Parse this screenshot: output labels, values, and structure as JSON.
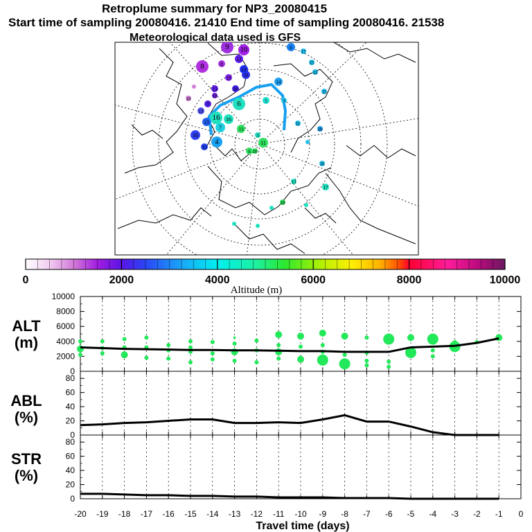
{
  "header": {
    "title": "Retroplume summary for NP3_20080415",
    "subtitle": "Start time of sampling 20080416. 21410     End time of sampling 20080416. 21538",
    "met": "Meteorological data used is GFS"
  },
  "colorbar": {
    "label": "Altitude (m)",
    "ticks": [
      "0",
      "2000",
      "4000",
      "6000",
      "8000",
      "10000"
    ],
    "min": 0,
    "max": 10000
  },
  "map": {
    "labels": [
      "9",
      "10",
      "8",
      "12",
      "8",
      "10",
      "19",
      "13",
      "16",
      "10",
      "7",
      "16",
      "13",
      "4",
      "7",
      "16",
      "16",
      "6",
      "13",
      "6",
      "11",
      "3",
      "5",
      "3",
      "6",
      "17",
      "15",
      "12",
      "15",
      "11",
      "20",
      "16",
      "16",
      "13",
      "17",
      "18",
      "14",
      "14",
      "10",
      "9",
      "10",
      "19",
      "20",
      "13",
      "13",
      "18",
      "14"
    ]
  },
  "panels": {
    "alt_label": "ALT",
    "alt_unit": "(m)",
    "abl_label": "ABL",
    "abl_unit": "(%)",
    "str_label": "STR",
    "str_unit": "(%)",
    "xlabel": "Travel time (days)"
  },
  "chart_data": [
    {
      "type": "scatter",
      "panel": "ALT",
      "ylabel": "ALT (m)",
      "xlabel": "Travel time (days)",
      "xlim": [
        -20,
        0
      ],
      "ylim": [
        0,
        10000
      ],
      "yticks": [
        "0",
        "2000",
        "4000",
        "6000",
        "8000",
        "10000"
      ],
      "xticks": [
        "-20",
        "-19",
        "-18",
        "-17",
        "-16",
        "-15",
        "-14",
        "-13",
        "-12",
        "-11",
        "-10",
        "-9",
        "-8",
        "-7",
        "-6",
        "-5",
        "-4",
        "-3",
        "-2",
        "-1",
        "0"
      ],
      "mean_line": {
        "x": [
          -20,
          -19,
          -18,
          -17,
          -16,
          -15,
          -14,
          -13,
          -12,
          -11,
          -10,
          -9,
          -8,
          -7,
          -6,
          -5,
          -4,
          -3,
          -2,
          -1
        ],
        "y": [
          3200,
          3100,
          3000,
          2950,
          2900,
          2850,
          2850,
          2800,
          2800,
          2750,
          2700,
          2700,
          2600,
          2600,
          2600,
          3200,
          3300,
          3400,
          3800,
          4400
        ]
      },
      "points": [
        {
          "x": -20,
          "y": 4000,
          "s": 1
        },
        {
          "x": -20,
          "y": 3000,
          "s": 2
        },
        {
          "x": -20,
          "y": 2200,
          "s": 1
        },
        {
          "x": -19,
          "y": 4000,
          "s": 1
        },
        {
          "x": -19,
          "y": 3100,
          "s": 1
        },
        {
          "x": -19,
          "y": 2400,
          "s": 1
        },
        {
          "x": -18,
          "y": 4300,
          "s": 1
        },
        {
          "x": -18,
          "y": 3200,
          "s": 1
        },
        {
          "x": -18,
          "y": 2200,
          "s": 2
        },
        {
          "x": -17,
          "y": 4500,
          "s": 1
        },
        {
          "x": -17,
          "y": 3200,
          "s": 1
        },
        {
          "x": -17,
          "y": 1800,
          "s": 1
        },
        {
          "x": -16,
          "y": 3500,
          "s": 1
        },
        {
          "x": -16,
          "y": 2800,
          "s": 1
        },
        {
          "x": -16,
          "y": 1700,
          "s": 1
        },
        {
          "x": -15,
          "y": 4000,
          "s": 1
        },
        {
          "x": -15,
          "y": 3200,
          "s": 1
        },
        {
          "x": -15,
          "y": 2600,
          "s": 1
        },
        {
          "x": -15,
          "y": 1200,
          "s": 1
        },
        {
          "x": -14,
          "y": 3900,
          "s": 1
        },
        {
          "x": -14,
          "y": 2400,
          "s": 1
        },
        {
          "x": -14,
          "y": 1600,
          "s": 1
        },
        {
          "x": -13,
          "y": 4500,
          "s": 0
        },
        {
          "x": -13,
          "y": 3700,
          "s": 1
        },
        {
          "x": -13,
          "y": 2600,
          "s": 2
        },
        {
          "x": -13,
          "y": 1400,
          "s": 1
        },
        {
          "x": -12,
          "y": 4100,
          "s": 1
        },
        {
          "x": -12,
          "y": 2800,
          "s": 1
        },
        {
          "x": -12,
          "y": 1200,
          "s": 1
        },
        {
          "x": -11,
          "y": 4900,
          "s": 2
        },
        {
          "x": -11,
          "y": 3500,
          "s": 1
        },
        {
          "x": -11,
          "y": 2600,
          "s": 2
        },
        {
          "x": -11,
          "y": 1700,
          "s": 1
        },
        {
          "x": -10,
          "y": 4700,
          "s": 2
        },
        {
          "x": -10,
          "y": 3300,
          "s": 1
        },
        {
          "x": -10,
          "y": 1600,
          "s": 2
        },
        {
          "x": -9,
          "y": 5100,
          "s": 2
        },
        {
          "x": -9,
          "y": 3500,
          "s": 1
        },
        {
          "x": -9,
          "y": 2600,
          "s": 1
        },
        {
          "x": -9,
          "y": 1500,
          "s": 3
        },
        {
          "x": -8,
          "y": 4700,
          "s": 2
        },
        {
          "x": -8,
          "y": 2200,
          "s": 1
        },
        {
          "x": -8,
          "y": 1000,
          "s": 3
        },
        {
          "x": -7,
          "y": 4500,
          "s": 1
        },
        {
          "x": -7,
          "y": 2500,
          "s": 1
        },
        {
          "x": -7,
          "y": 1400,
          "s": 1
        },
        {
          "x": -7,
          "y": 800,
          "s": 1
        },
        {
          "x": -6,
          "y": 4300,
          "s": 3
        },
        {
          "x": -6,
          "y": 1300,
          "s": 1
        },
        {
          "x": -6,
          "y": 600,
          "s": 1
        },
        {
          "x": -5,
          "y": 4500,
          "s": 2
        },
        {
          "x": -5,
          "y": 2500,
          "s": 3
        },
        {
          "x": -4,
          "y": 4300,
          "s": 3
        },
        {
          "x": -4,
          "y": 2800,
          "s": 1
        },
        {
          "x": -4,
          "y": 2000,
          "s": 1
        },
        {
          "x": -3,
          "y": 3900,
          "s": 1
        },
        {
          "x": -3,
          "y": 3300,
          "s": 3
        },
        {
          "x": -2,
          "y": 3900,
          "s": 1
        },
        {
          "x": -1,
          "y": 4500,
          "s": 2
        }
      ]
    },
    {
      "type": "line",
      "panel": "ABL",
      "ylabel": "ABL (%)",
      "xlim": [
        -20,
        0
      ],
      "ylim": [
        0,
        90
      ],
      "yticks": [
        "0",
        "20",
        "40",
        "60",
        "80"
      ],
      "x": [
        -20,
        -19,
        -18,
        -17,
        -16,
        -15,
        -14,
        -13,
        -12,
        -11,
        -10,
        -9,
        -8,
        -7,
        -6,
        -5,
        -4,
        -3,
        -2,
        -1
      ],
      "y": [
        14,
        15,
        17,
        18,
        20,
        22,
        22,
        17,
        17,
        18,
        17,
        22,
        28,
        19,
        19,
        12,
        4,
        0,
        0,
        0
      ]
    },
    {
      "type": "line",
      "panel": "STR",
      "ylabel": "STR (%)",
      "xlim": [
        -20,
        0
      ],
      "ylim": [
        0,
        90
      ],
      "yticks": [
        "0",
        "20",
        "40",
        "60",
        "80"
      ],
      "x": [
        -20,
        -19,
        -18,
        -17,
        -16,
        -15,
        -14,
        -13,
        -12,
        -11,
        -10,
        -9,
        -8,
        -7,
        -6,
        -5,
        -4,
        -3,
        -2,
        -1
      ],
      "y": [
        7,
        7,
        6,
        5,
        5,
        4,
        4,
        3,
        3,
        2,
        2,
        2,
        1,
        1,
        1,
        0,
        0,
        0,
        0,
        0
      ]
    }
  ]
}
